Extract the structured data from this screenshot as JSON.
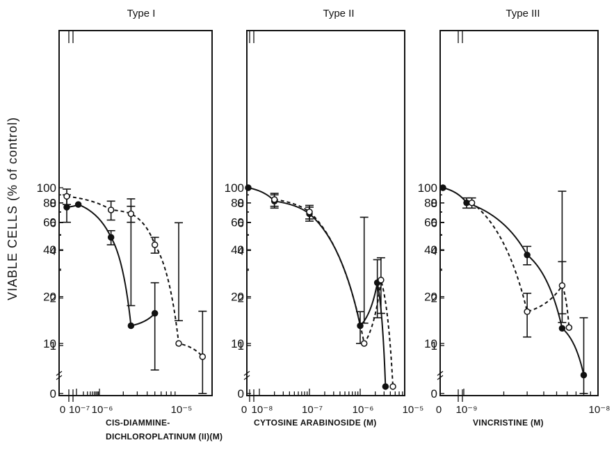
{
  "ylabel": "VIABLE CELLS (% of control)",
  "y_tick_labels": [
    "0",
    "1",
    "2",
    "4",
    "6",
    "8",
    "10",
    "20",
    "40",
    "60",
    "80",
    "100"
  ],
  "chart_data": [
    {
      "type": "line",
      "title": "Type I",
      "xlabel": [
        "CIS-DIAMMINE-",
        "DICHLOROPLATINUM (II)(M)"
      ],
      "x_tick_labels": [
        "0",
        "10⁻⁷",
        "10⁻⁶",
        "10⁻⁵"
      ],
      "y_scale": "log",
      "x_scale": "log",
      "xlim": [
        5e-08,
        3e-05
      ],
      "ylim": [
        0.5,
        100
      ],
      "series": [
        {
          "marker": "filled-circle",
          "line": "solid",
          "points": [
            {
              "x": 0,
              "y": 75,
              "err": 15
            },
            {
              "x": 1.2e-07,
              "y": 78
            },
            {
              "x": 1.4e-06,
              "y": 48,
              "err": 5
            },
            {
              "x": 2.5e-06,
              "y": 13,
              "err": 4.5
            },
            {
              "x": 5e-06,
              "y": 1.6,
              "err": 0.9
            }
          ]
        },
        {
          "marker": "open-circle",
          "line": "dashed",
          "points": [
            {
              "x": 0,
              "y": 88,
              "err": 10
            },
            {
              "x": 1.4e-06,
              "y": 72,
              "err": 10
            },
            {
              "x": 2.5e-06,
              "y": 68,
              "err": 8
            },
            {
              "x": 5e-06,
              "y": 43,
              "err": 5
            },
            {
              "x": 1e-05,
              "y": 10,
              "err": 4
            },
            {
              "x": 2e-05,
              "y": 0.85,
              "err": 0.8
            }
          ]
        }
      ]
    },
    {
      "type": "line",
      "title": "Type II",
      "xlabel": [
        "CYTOSINE ARABINOSIDE (M)"
      ],
      "x_tick_labels": [
        "0",
        "10⁻⁸",
        "10⁻⁷",
        "10⁻⁶",
        "10⁻⁵"
      ],
      "y_scale": "log",
      "x_scale": "log",
      "xlim": [
        5e-09,
        1e-05
      ],
      "ylim": [
        0.5,
        100
      ],
      "series": [
        {
          "marker": "filled-circle",
          "line": "solid",
          "points": [
            {
              "x": 0,
              "y": 100
            },
            {
              "x": 2e-08,
              "y": 82,
              "err": 8
            },
            {
              "x": 1e-07,
              "y": 68,
              "err": 7
            },
            {
              "x": 1e-06,
              "y": 13,
              "err": 3
            },
            {
              "x": 2.2e-06,
              "y": 2.5,
              "err": 1
            },
            {
              "x": 3.2e-06,
              "y": 0.55
            }
          ]
        },
        {
          "marker": "open-circle",
          "line": "dashed",
          "points": [
            {
              "x": 2e-08,
              "y": 84,
              "err": 8
            },
            {
              "x": 1e-07,
              "y": 70,
              "err": 7
            },
            {
              "x": 1.2e-06,
              "y": 10,
              "err": 3.5
            },
            {
              "x": 2.6e-06,
              "y": 2.6,
              "err": 1
            },
            {
              "x": 4.5e-06,
              "y": 0.55
            }
          ]
        }
      ]
    },
    {
      "type": "line",
      "title": "Type III",
      "xlabel": [
        "VINCRISTINE (M)"
      ],
      "x_tick_labels": [
        "0",
        "10⁻⁹",
        "10⁻⁸"
      ],
      "y_scale": "log",
      "x_scale": "log",
      "xlim": [
        7e-10,
        1e-08
      ],
      "ylim": [
        0.5,
        100
      ],
      "series": [
        {
          "marker": "filled-circle",
          "line": "solid",
          "points": [
            {
              "x": 0,
              "y": 100
            },
            {
              "x": 1.05e-09,
              "y": 80,
              "err": 6
            },
            {
              "x": 3e-09,
              "y": 37,
              "err": 5
            },
            {
              "x": 5.5e-09,
              "y": 12.5,
              "err": 3
            },
            {
              "x": 8e-09,
              "y": 0.65,
              "err": 0.85
            }
          ]
        },
        {
          "marker": "open-circle",
          "line": "dashed",
          "points": [
            {
              "x": 1.15e-09,
              "y": 80,
              "err": 6
            },
            {
              "x": 3e-09,
              "y": 16,
              "err": 5
            },
            {
              "x": 5.5e-09,
              "y": 2.4,
              "err": 1
            },
            {
              "x": 6.2e-09,
              "y": 1.3
            }
          ]
        }
      ]
    }
  ]
}
